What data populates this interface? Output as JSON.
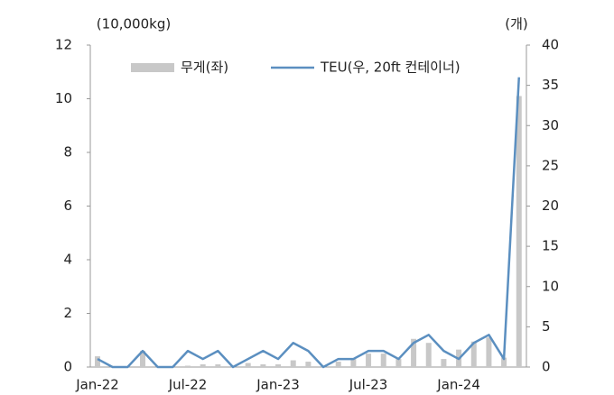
{
  "chart_data": {
    "type": "bar_line",
    "y_label": "(10,000kg)",
    "y2_label": "(개)",
    "categories": [
      "Jan-22",
      null,
      null,
      null,
      null,
      null,
      "Jul-22",
      null,
      null,
      null,
      null,
      null,
      "Jan-23",
      null,
      null,
      null,
      null,
      null,
      "Jul-23",
      null,
      null,
      null,
      null,
      null,
      "Jan-24",
      null,
      null,
      null,
      null
    ],
    "series": [
      {
        "name": "무게(좌)",
        "type": "bar",
        "color": "#c8c8c8",
        "values": [
          0.4,
          0,
          0,
          0.6,
          0,
          0,
          0.05,
          0.1,
          0.1,
          0,
          0.15,
          0.1,
          0.1,
          0.25,
          0.2,
          0,
          0.2,
          0.3,
          0.5,
          0.5,
          0.3,
          1.05,
          0.9,
          0.3,
          0.65,
          0.95,
          1.1,
          0.35,
          10.1
        ]
      },
      {
        "name": "TEU(우, 20ft 컨테이너)",
        "type": "line",
        "axis": "y2",
        "color": "#5b8fc0",
        "values": [
          1,
          0,
          0,
          2,
          0,
          0,
          2,
          1,
          2,
          0,
          1,
          2,
          1,
          3,
          2,
          0,
          1,
          1,
          2,
          2,
          1,
          3,
          4,
          2,
          1,
          3,
          4,
          1,
          36
        ]
      }
    ],
    "ylim": [
      0,
      12
    ],
    "yticks": [
      0,
      2,
      4,
      6,
      8,
      10,
      12
    ],
    "y2lim": [
      0,
      40
    ],
    "y2ticks": [
      0,
      5,
      10,
      15,
      20,
      25,
      30,
      35,
      40
    ],
    "legend": "top"
  }
}
